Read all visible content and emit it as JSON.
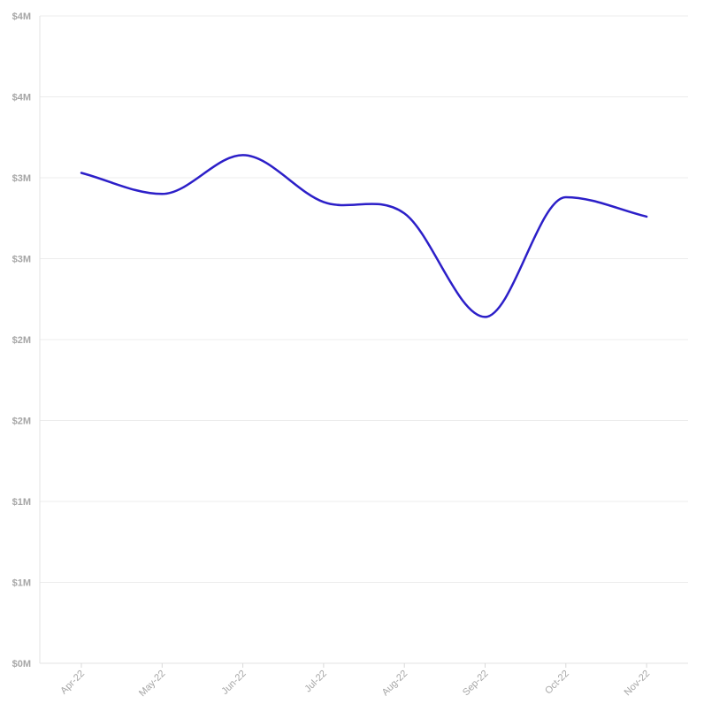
{
  "chart_data": {
    "type": "line",
    "title": "",
    "xlabel": "",
    "ylabel": "",
    "categories": [
      "Apr-22",
      "May-22",
      "Jun-22",
      "Jul-22",
      "Aug-22",
      "Sep-22",
      "Oct-22",
      "Nov-22"
    ],
    "series": [
      {
        "values": [
          3030000,
          2900000,
          3140000,
          2850000,
          2780000,
          2140000,
          2880000,
          2760000
        ],
        "color": "#2c1fc8"
      }
    ],
    "ylim": [
      0,
      4000000
    ],
    "y_ticks": [
      {
        "value": 0,
        "label": "$0M"
      },
      {
        "value": 500000,
        "label": "$1M"
      },
      {
        "value": 1000000,
        "label": "$1M"
      },
      {
        "value": 1500000,
        "label": "$2M"
      },
      {
        "value": 2000000,
        "label": "$2M"
      },
      {
        "value": 2500000,
        "label": "$3M"
      },
      {
        "value": 3000000,
        "label": "$3M"
      },
      {
        "value": 3500000,
        "label": "$4M"
      },
      {
        "value": 4000000,
        "label": "$4M"
      }
    ],
    "grid": true,
    "legend": "none"
  }
}
